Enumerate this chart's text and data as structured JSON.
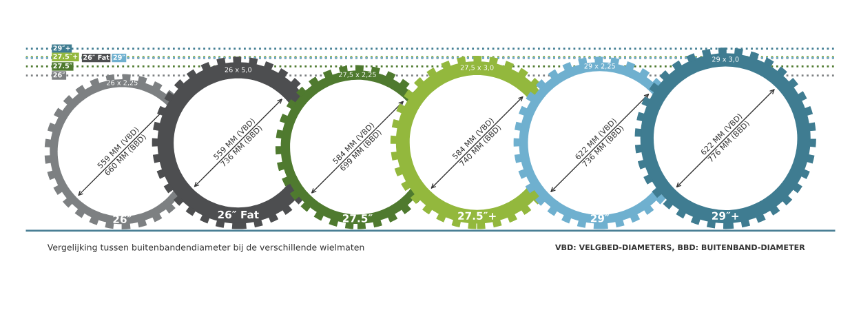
{
  "chart_data": {
    "type": "other",
    "categories": [
      "26″",
      "26″ Fat",
      "27.5″",
      "27.5″+",
      "29″",
      "29″+"
    ],
    "series": [
      {
        "color": "#ffffff",
        "values": [
          559,
          559,
          584,
          584,
          622,
          622
        ],
        "value_labels": [
          "559 MM (VBD)",
          "559 MM (VBD)",
          "584 MM (VBD)",
          "584 MM (VBD)",
          "622 MM (VBD)",
          "622 MM (VBD)"
        ]
      },
      {
        "colors": [
          "#7d8082",
          "#4d4e50",
          "#4f7a2f",
          "#93b83d",
          "#6fb0cf",
          "#3f7c91"
        ],
        "values": [
          660,
          736,
          699,
          740,
          736,
          776
        ],
        "value_labels": [
          "660 MM (BBD)",
          "736 MM (BBD)",
          "699 MM (BBD)",
          "740 MM (BBD)",
          "736 MM (BBD)",
          "776 MM (BBD)"
        ]
      }
    ],
    "annotations": [
      {
        "text": "26 x 2,25",
        "x": "26″"
      },
      {
        "text": "26 x 5,0",
        "x": "26″ Fat"
      },
      {
        "text": "27,5 x 2,25",
        "x": "27.5″"
      },
      {
        "text": "27,5 x 3,0",
        "x": "27.5″+"
      },
      {
        "text": "29 x 2,25",
        "x": "29″"
      },
      {
        "text": "29 x 3,0",
        "x": "29″+"
      },
      "Vergelijking tussen buitenbandendiameter bij de verschillende wielmaten",
      "VBD: VELGBED-DIAMETERS, BBD: BUITENBAND-DIAMETER"
    ]
  }
}
